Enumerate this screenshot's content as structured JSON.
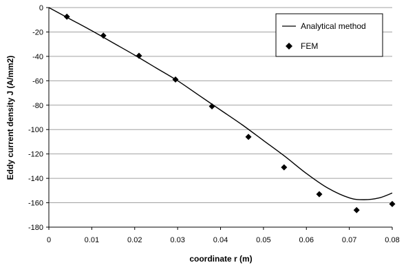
{
  "chart_data": {
    "type": "line",
    "xlabel": "coordinate  r  (m)",
    "ylabel": "Eddy current density J (A/mm2)",
    "xlim": [
      0,
      0.08
    ],
    "ylim": [
      -180,
      0
    ],
    "x_ticks": [
      0,
      0.01,
      0.02,
      0.03,
      0.04,
      0.05,
      0.06,
      0.07,
      0.08
    ],
    "y_ticks": [
      0,
      -20,
      -40,
      -60,
      -80,
      -100,
      -120,
      -140,
      -160,
      -180
    ],
    "grid": "horizontal",
    "legend_position": "top-right",
    "series": [
      {
        "name": "Analytical method",
        "style": "line",
        "color": "#000000",
        "x": [
          0,
          0.005,
          0.01,
          0.015,
          0.02,
          0.025,
          0.03,
          0.035,
          0.04,
          0.045,
          0.05,
          0.055,
          0.06,
          0.065,
          0.07,
          0.0735,
          0.077,
          0.08
        ],
        "y": [
          0,
          -9.5,
          -19,
          -29,
          -39,
          -49.5,
          -60,
          -72,
          -84,
          -96,
          -109,
          -122,
          -136,
          -148,
          -156,
          -157.5,
          -156,
          -152
        ]
      },
      {
        "name": "FEM",
        "style": "marker",
        "marker": "diamond",
        "color": "#000000",
        "x": [
          0.0042,
          0.0127,
          0.021,
          0.0295,
          0.038,
          0.0465,
          0.0548,
          0.063,
          0.0717,
          0.08
        ],
        "y": [
          -7.5,
          -23,
          -39.5,
          -59,
          -81,
          -106,
          -131,
          -153,
          -166,
          -161
        ]
      }
    ]
  }
}
